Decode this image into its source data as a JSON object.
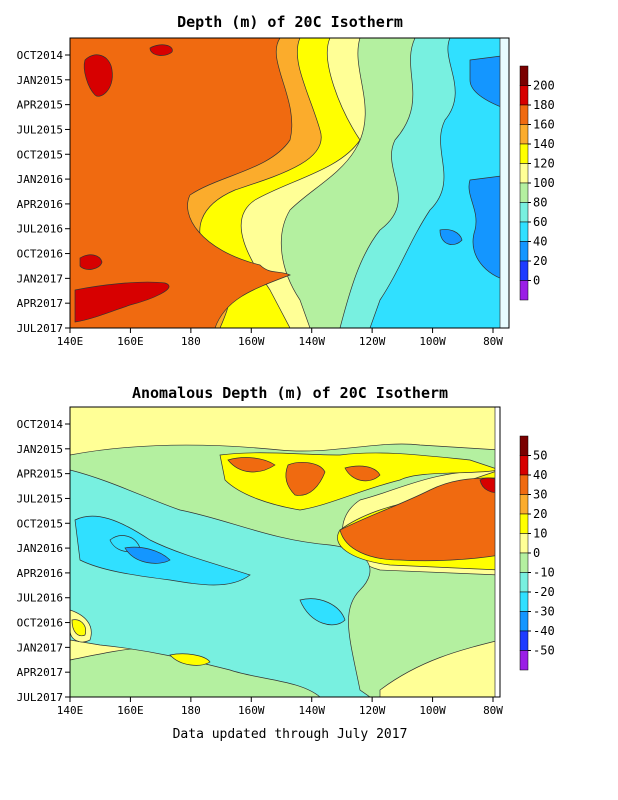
{
  "chart_data": [
    {
      "type": "heatmap",
      "title": "Depth (m) of 20C Isotherm",
      "x_ticks": [
        "140E",
        "160E",
        "180",
        "160W",
        "140W",
        "120W",
        "100W",
        "80W"
      ],
      "y_ticks": [
        "OCT2014",
        "JAN2015",
        "APR2015",
        "JUL2015",
        "OCT2015",
        "JAN2016",
        "APR2016",
        "JUL2016",
        "OCT2016",
        "JAN2017",
        "APR2017",
        "JUL2017"
      ],
      "colorbar": {
        "levels": [
          "200",
          "180",
          "160",
          "140",
          "120",
          "100",
          "80",
          "60",
          "40",
          "20",
          "0"
        ],
        "colors": [
          "#7a0000",
          "#d70000",
          "#f06a10",
          "#fbac2c",
          "#ffff00",
          "#ffff96",
          "#b4f0a0",
          "#78f0e0",
          "#30e0ff",
          "#1496ff",
          "#1e3cff",
          "#9b1ee6"
        ]
      }
    },
    {
      "type": "heatmap",
      "title": "Anomalous Depth (m) of 20C Isotherm",
      "x_ticks": [
        "140E",
        "160E",
        "180",
        "160W",
        "140W",
        "120W",
        "100W",
        "80W"
      ],
      "y_ticks": [
        "OCT2014",
        "JAN2015",
        "APR2015",
        "JUL2015",
        "OCT2015",
        "JAN2016",
        "APR2016",
        "JUL2016",
        "OCT2016",
        "JAN2017",
        "APR2017",
        "JUL2017"
      ],
      "colorbar": {
        "levels": [
          "50",
          "40",
          "30",
          "20",
          "10",
          "0",
          "-10",
          "-20",
          "-30",
          "-40",
          "-50"
        ],
        "colors": [
          "#7a0000",
          "#d70000",
          "#f06a10",
          "#fbac2c",
          "#ffff00",
          "#ffff96",
          "#b4f0a0",
          "#78f0e0",
          "#30e0ff",
          "#1496ff",
          "#1e3cff",
          "#9b1ee6"
        ]
      }
    }
  ],
  "footer": {
    "note": "Data updated through July 2017"
  }
}
